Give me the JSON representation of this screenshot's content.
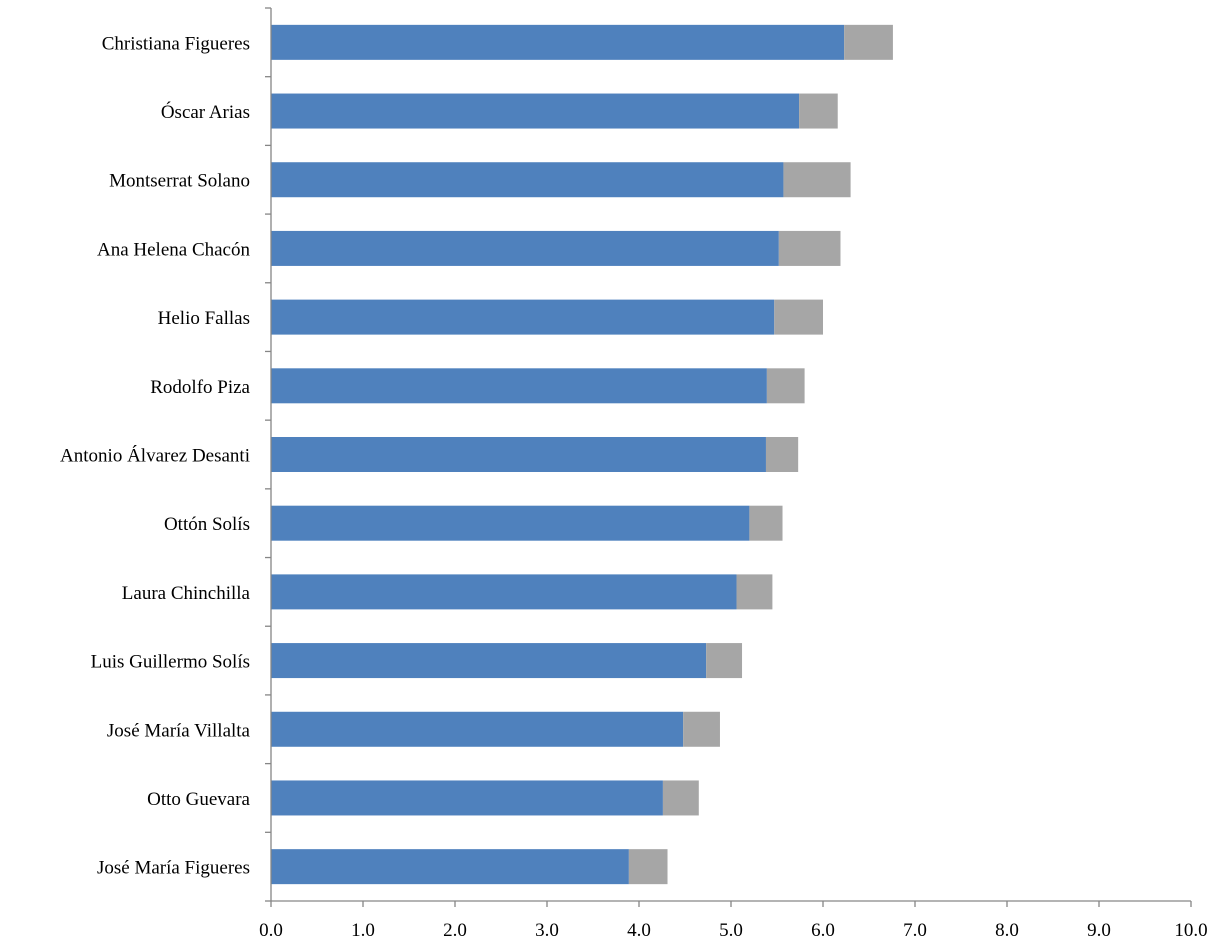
{
  "chart_data": {
    "type": "bar",
    "orientation": "horizontal",
    "stacked": true,
    "categories": [
      "Christiana Figueres",
      "Óscar Arias",
      "Montserrat Solano",
      "Ana Helena Chacón",
      "Helio Fallas",
      "Rodolfo Piza",
      "Antonio Álvarez Desanti",
      "Ottón Solís",
      "Laura Chinchilla",
      "Luis Guillermo Solís",
      "José María Villalta",
      "Otto Guevara",
      "José María Figueres"
    ],
    "series": [
      {
        "color": "#4f81bd",
        "values": [
          6.23,
          5.74,
          5.57,
          5.52,
          5.47,
          5.39,
          5.38,
          5.2,
          5.06,
          4.73,
          4.48,
          4.26,
          3.89
        ]
      },
      {
        "color": "#a6a6a6",
        "values": [
          0.53,
          0.42,
          0.73,
          0.67,
          0.53,
          0.41,
          0.35,
          0.36,
          0.39,
          0.39,
          0.4,
          0.39,
          0.42
        ]
      }
    ],
    "xlim": [
      0,
      10
    ],
    "ticks": [
      "0.0",
      "1.0",
      "2.0",
      "3.0",
      "4.0",
      "5.0",
      "6.0",
      "7.0",
      "8.0",
      "9.0",
      "10.0"
    ],
    "title": "",
    "xlabel": "",
    "ylabel": "",
    "grid": false,
    "legend": "none"
  }
}
